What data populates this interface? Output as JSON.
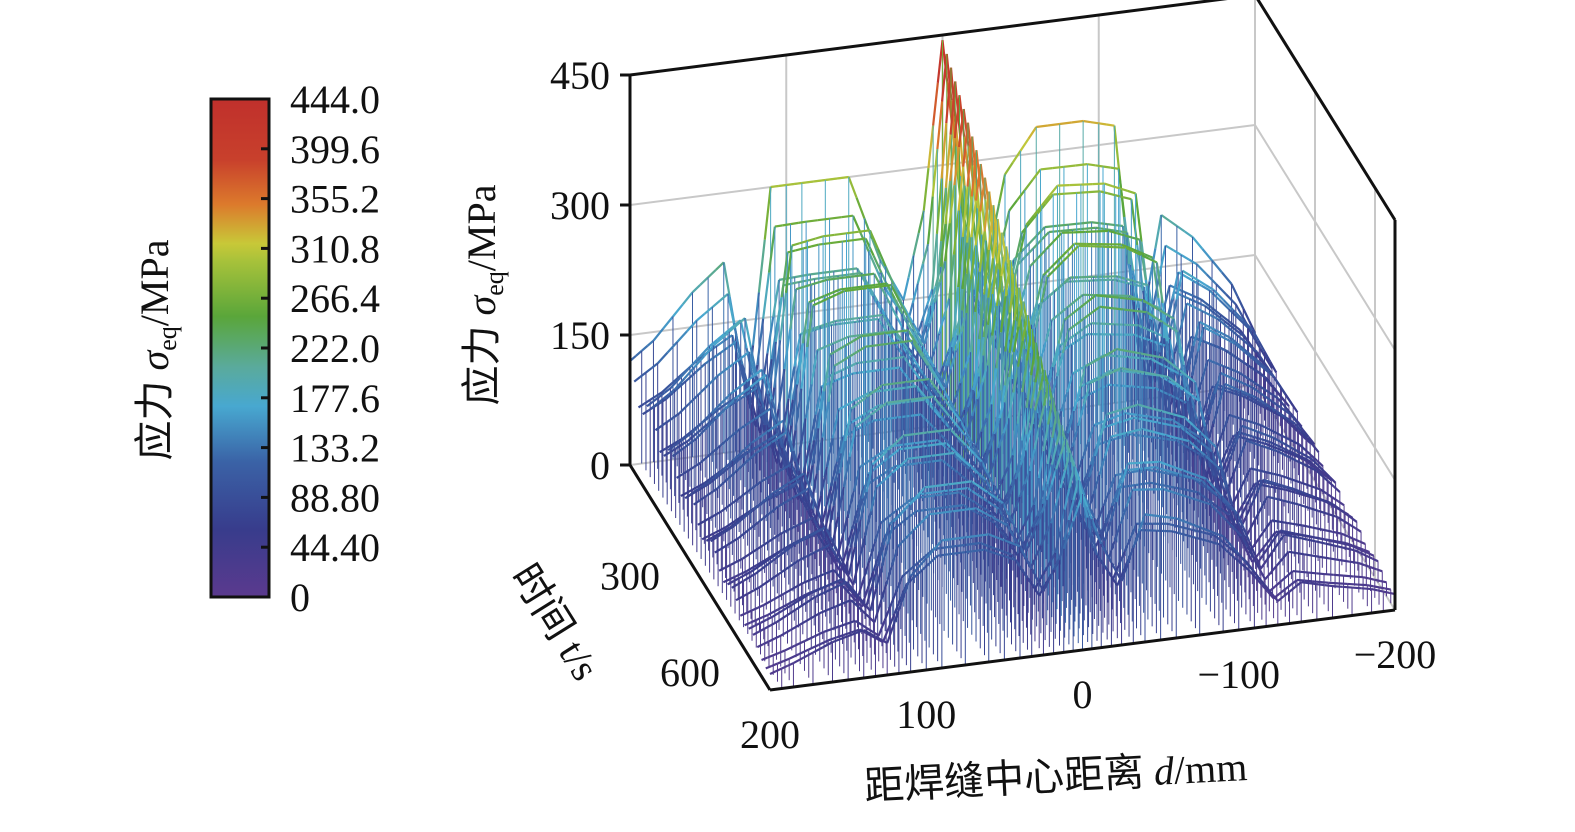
{
  "chart_data": {
    "type": "surface",
    "title": "",
    "xlabel": "距焊缝中心距离 d/mm",
    "ylabel": "时间 t/s",
    "zlabel": "应力 σeq/MPa",
    "zlabel_parts": {
      "prefix": "应力 ",
      "symbol": "σ",
      "subscript": "eq",
      "suffix": "/MPa"
    },
    "xlabel_parts": {
      "prefix": "距焊缝中心距离 ",
      "symbol": "d",
      "suffix": "/mm"
    },
    "ylabel_parts": {
      "prefix": "时间 ",
      "symbol": "t",
      "suffix": "/s"
    },
    "x_ticks": [
      "200",
      "100",
      "0",
      "−100",
      "−200"
    ],
    "x_tick_values": [
      200,
      100,
      0,
      -100,
      -200
    ],
    "y_ticks": [
      "300",
      "600"
    ],
    "y_tick_values": [
      300,
      600
    ],
    "z_ticks": [
      "0",
      "150",
      "300",
      "450"
    ],
    "z_tick_values": [
      0,
      150,
      300,
      450
    ],
    "xlim": [
      -200,
      200
    ],
    "ylim": [
      0,
      700
    ],
    "zlim": [
      0,
      450
    ],
    "grid": true,
    "colorbar": {
      "label": "应力 σeq/MPa",
      "ticks": [
        "444.0",
        "399.6",
        "355.2",
        "310.8",
        "266.4",
        "222.0",
        "177.6",
        "133.2",
        "88.80",
        "44.40",
        "0"
      ],
      "range": [
        0,
        444
      ],
      "colors": [
        {
          "v": 0,
          "c": "#5b3a8e"
        },
        {
          "v": 60,
          "c": "#383c8c"
        },
        {
          "v": 120,
          "c": "#3a62a6"
        },
        {
          "v": 170,
          "c": "#48a8d0"
        },
        {
          "v": 205,
          "c": "#5aaa9c"
        },
        {
          "v": 250,
          "c": "#5aa63a"
        },
        {
          "v": 300,
          "c": "#a8c23a"
        },
        {
          "v": 315,
          "c": "#c8c838"
        },
        {
          "v": 350,
          "c": "#dc7a2c"
        },
        {
          "v": 390,
          "c": "#c8402c"
        },
        {
          "v": 444,
          "c": "#c0302c"
        }
      ]
    },
    "surface_profile": {
      "d": [
        -200,
        -185,
        -160,
        -140,
        -125,
        -110,
        -90,
        -60,
        -40,
        -25,
        -12,
        0,
        12,
        25,
        40,
        60,
        90,
        110,
        125,
        140,
        160,
        185,
        200
      ],
      "stress_t_start": [
        60,
        120,
        180,
        210,
        60,
        320,
        330,
        330,
        280,
        150,
        250,
        444,
        250,
        150,
        200,
        300,
        300,
        300,
        60,
        220,
        190,
        140,
        120
      ],
      "stress_t_end": [
        20,
        30,
        40,
        50,
        30,
        70,
        120,
        150,
        160,
        80,
        130,
        180,
        130,
        80,
        140,
        160,
        160,
        120,
        40,
        60,
        50,
        30,
        20
      ]
    }
  }
}
